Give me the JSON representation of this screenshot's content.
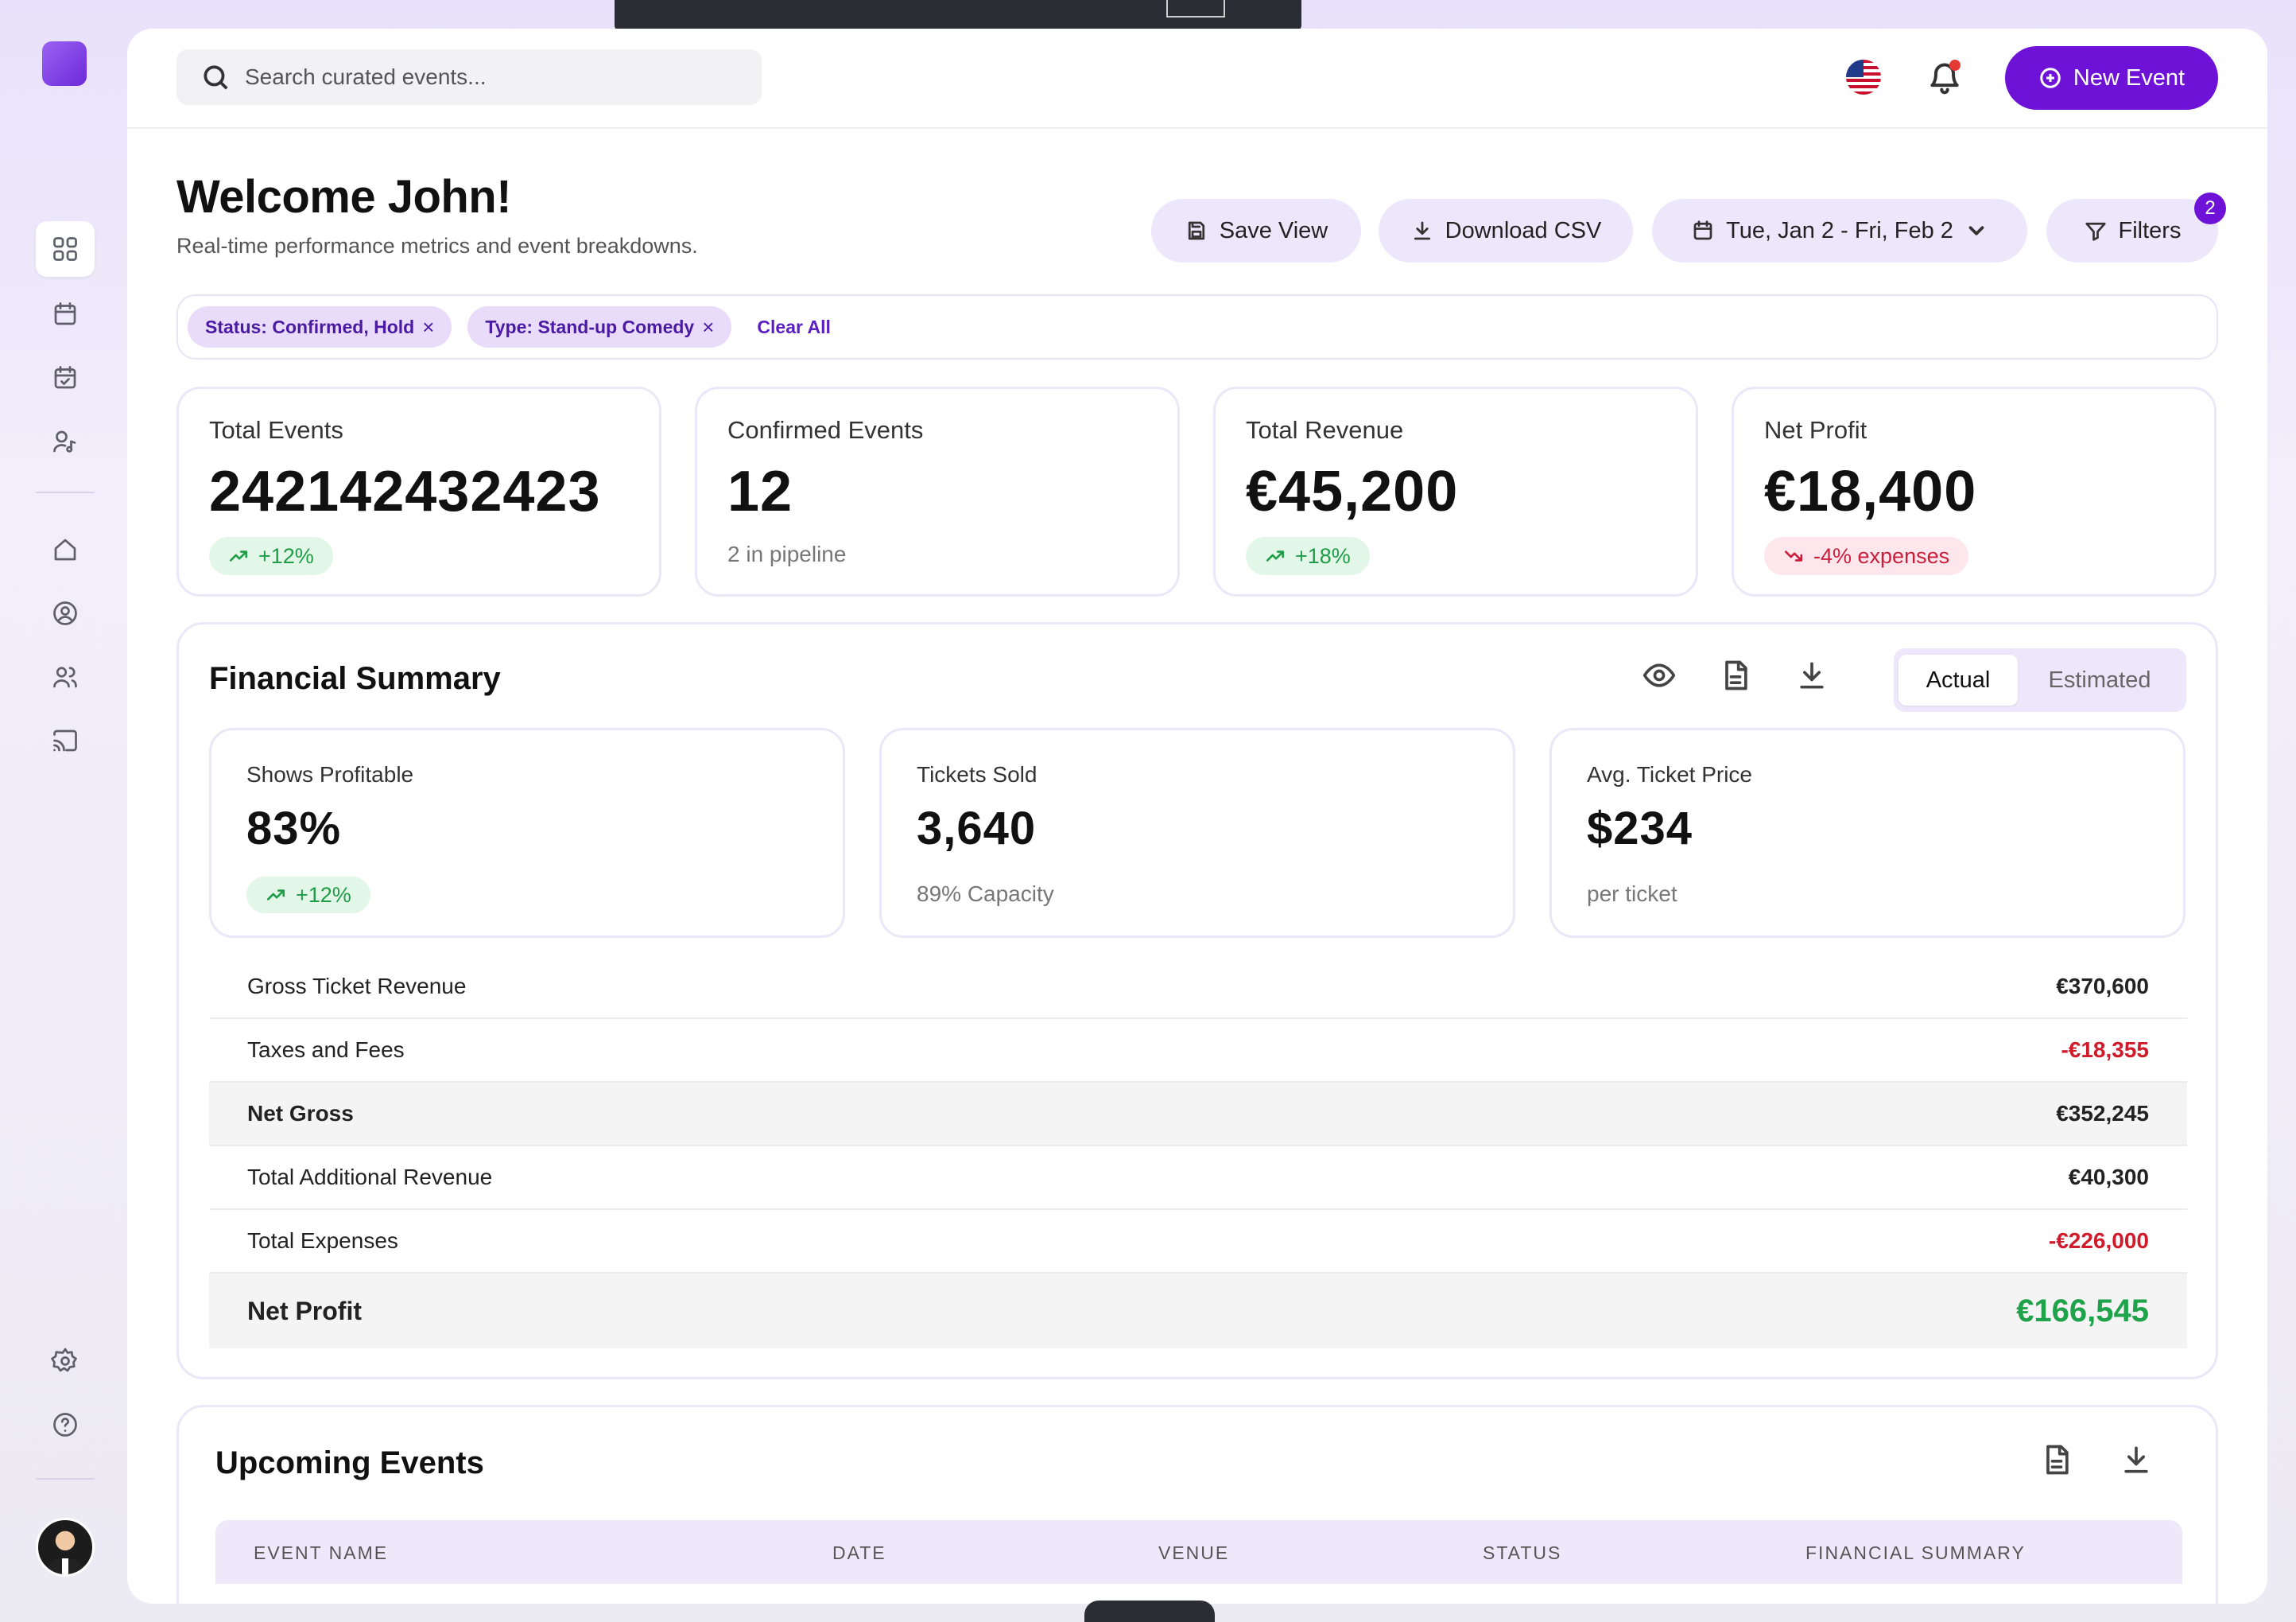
{
  "search": {
    "placeholder": "Search curated events..."
  },
  "header": {
    "new_event_label": "New Event"
  },
  "page": {
    "title": "Welcome John!",
    "subtitle": "Real-time performance metrics and event breakdowns."
  },
  "actions": {
    "save_view": "Save View",
    "download_csv": "Download CSV",
    "date_range": "Tue, Jan 2 - Fri, Feb 2",
    "filters": "Filters",
    "filters_count": "2"
  },
  "chips": [
    {
      "label": "Status: Confirmed, Hold"
    },
    {
      "label": "Type: Stand-up Comedy"
    }
  ],
  "chips_clear": "Clear All",
  "stats": [
    {
      "label": "Total Events",
      "value": "242142432423",
      "tag": "+12%"
    },
    {
      "label": "Confirmed Events",
      "value": "12",
      "note": "2 in pipeline"
    },
    {
      "label": "Total Revenue",
      "value": "€45,200",
      "tag": "+18%"
    },
    {
      "label": "Net Profit",
      "value": "€18,400",
      "tag": "-4% expenses"
    }
  ],
  "financial": {
    "title": "Financial Summary",
    "toggle": {
      "actual": "Actual",
      "estimated": "Estimated"
    },
    "cards": [
      {
        "label": "Shows Profitable",
        "value": "83%",
        "tag": "+12%"
      },
      {
        "label": "Tickets Sold",
        "value": "3,640",
        "note": "89% Capacity"
      },
      {
        "label": "Avg. Ticket Price",
        "value": "$234",
        "note": "per ticket"
      }
    ],
    "rows": [
      {
        "label": "Gross Ticket Revenue",
        "value": "€370,600"
      },
      {
        "label": "Taxes and Fees",
        "value": "-€18,355"
      },
      {
        "label": "Net Gross",
        "value": "€352,245"
      },
      {
        "label": "Total Additional Revenue",
        "value": "€40,300"
      },
      {
        "label": "Total Expenses",
        "value": "-€226,000"
      },
      {
        "label": "Net Profit",
        "value": "€166,545"
      }
    ]
  },
  "upcoming": {
    "title": "Upcoming Events",
    "columns": [
      "EVENT NAME",
      "DATE",
      "VENUE",
      "STATUS",
      "FINANCIAL SUMMARY"
    ]
  }
}
